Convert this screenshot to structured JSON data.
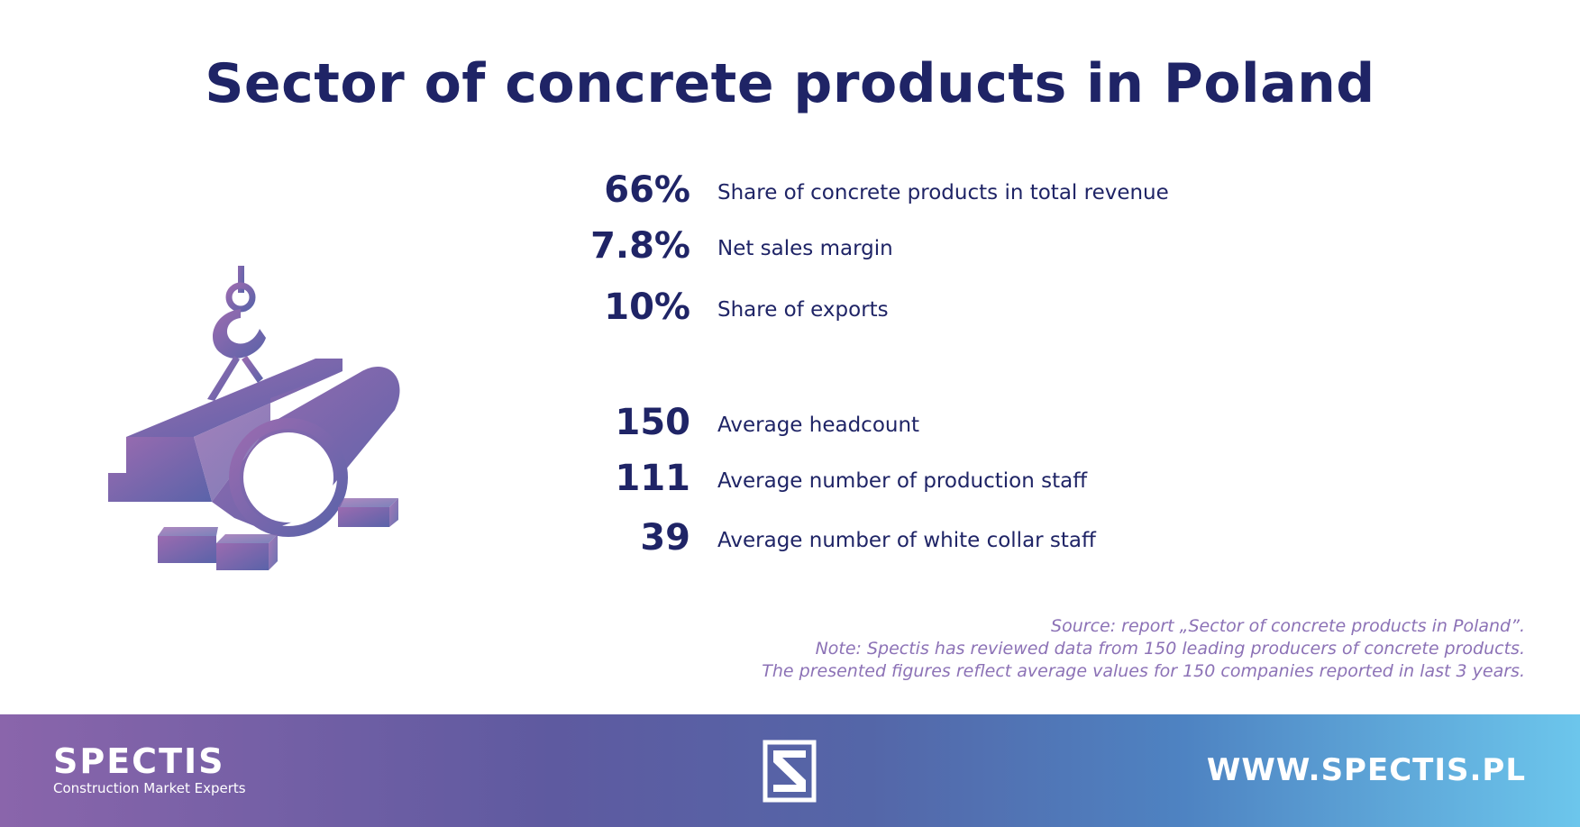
{
  "title": "Sector of concrete products in Poland",
  "stats_group_1": [
    {
      "value": "66%",
      "label": "Share of concrete products in total revenue"
    },
    {
      "value": "7.8%",
      "label": "Net sales margin"
    },
    {
      "value": "10%",
      "label": "Share of exports"
    }
  ],
  "stats_group_2": [
    {
      "value": "150",
      "label": "Average headcount"
    },
    {
      "value": "111",
      "label": "Average number of production staff"
    },
    {
      "value": "39",
      "label": "Average number of white collar staff"
    }
  ],
  "notes": {
    "source": "Source: report „Sector of concrete products in Poland”.",
    "note": "Note: Spectis has reviewed data from 150 leading producers of concrete products.",
    "detail": "The presented figures reflect average values for 150 companies reported in last 3 years."
  },
  "footer": {
    "brand_name": "SPECTIS",
    "brand_tagline": "Construction Market Experts",
    "website": "WWW.SPECTIS.PL"
  },
  "colors": {
    "title": "#1f2466",
    "icon_purple": "#8b64ad",
    "icon_blue": "#5a63a9",
    "notes": "#8c72b6"
  }
}
